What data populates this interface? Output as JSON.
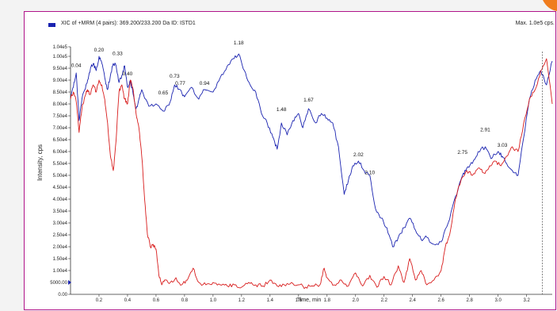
{
  "legend": {
    "label": "XIC of +MRM (4 pairs): 369.200/233.200 Da ID: ISTD1",
    "max": "Max. 1.0e5 cps."
  },
  "colors": {
    "series1": "#1a23b0",
    "series2": "#d81c1c",
    "frame": "#b0148a",
    "accent": "#f07d1e"
  },
  "chart_data": {
    "type": "line",
    "xlabel": "Time, min",
    "ylabel": "Intensity, cps",
    "xlim": [
      0.0,
      3.38
    ],
    "ylim": [
      0,
      104000
    ],
    "x_ticks": [
      0.2,
      0.4,
      0.6,
      0.8,
      1.0,
      1.2,
      1.4,
      1.6,
      1.8,
      2.0,
      2.2,
      2.4,
      2.6,
      2.8,
      3.0,
      3.2
    ],
    "x_tick_labels": [
      "0.2",
      "0.4",
      "0.6",
      "0.8",
      "1.0",
      "1.2",
      "1.4",
      "1.6",
      "1.8",
      "2.0",
      "2.2",
      "2.4",
      "2.6",
      "2.8",
      "3.0",
      "3.2"
    ],
    "y_ticks": [
      0,
      5000,
      10000,
      15000,
      20000,
      25000,
      30000,
      35000,
      40000,
      45000,
      50000,
      55000,
      60000,
      65000,
      70000,
      75000,
      80000,
      85000,
      90000,
      95000,
      100000,
      104000
    ],
    "y_tick_labels": [
      "0.00",
      "5000.00",
      "1.00e4",
      "1.50e4",
      "2.00e4",
      "2.50e4",
      "3.00e4",
      "3.50e4",
      "4.00e4",
      "4.50e4",
      "5.00e4",
      "5.50e4",
      "6.00e4",
      "6.50e4",
      "7.00e4",
      "7.50e4",
      "8.00e4",
      "8.50e4",
      "9.00e4",
      "9.50e4",
      "1.00e5",
      "1.04e5"
    ],
    "series": [
      {
        "x": [
          0.0,
          0.02,
          0.04,
          0.06,
          0.08,
          0.1,
          0.12,
          0.14,
          0.16,
          0.18,
          0.2,
          0.22,
          0.24,
          0.26,
          0.28,
          0.3,
          0.32,
          0.34,
          0.36,
          0.38,
          0.4,
          0.42,
          0.44,
          0.46,
          0.48,
          0.5,
          0.55,
          0.6,
          0.65,
          0.7,
          0.73,
          0.77,
          0.8,
          0.85,
          0.9,
          0.94,
          1.0,
          1.05,
          1.1,
          1.14,
          1.18,
          1.22,
          1.26,
          1.3,
          1.34,
          1.38,
          1.42,
          1.45,
          1.48,
          1.52,
          1.56,
          1.6,
          1.63,
          1.67,
          1.72,
          1.76,
          1.8,
          1.84,
          1.88,
          1.92,
          1.95,
          1.98,
          2.02,
          2.06,
          2.1,
          2.14,
          2.18,
          2.22,
          2.26,
          2.3,
          2.34,
          2.38,
          2.42,
          2.46,
          2.5,
          2.55,
          2.6,
          2.65,
          2.7,
          2.75,
          2.78,
          2.82,
          2.86,
          2.91,
          2.95,
          3.0,
          3.03,
          3.06,
          3.1,
          3.14,
          3.18,
          3.22,
          3.26,
          3.3,
          3.34,
          3.38
        ],
        "values": [
          83000,
          87000,
          93000,
          73000,
          82000,
          86000,
          90000,
          95000,
          97000,
          94000,
          100000,
          97000,
          91000,
          86000,
          92000,
          97000,
          96000,
          89000,
          92000,
          96000,
          87000,
          90000,
          84000,
          78000,
          82000,
          86000,
          79000,
          80000,
          77000,
          81000,
          88000,
          86000,
          83000,
          87000,
          82000,
          86000,
          85000,
          91000,
          96000,
          99000,
          101000,
          94000,
          88000,
          85000,
          76000,
          72000,
          66000,
          61000,
          72000,
          67000,
          73000,
          76000,
          70000,
          78000,
          72000,
          76000,
          74000,
          72000,
          62000,
          42000,
          48000,
          54000,
          56000,
          52000,
          50000,
          36000,
          32000,
          28000,
          20000,
          24000,
          28000,
          32000,
          27000,
          23000,
          24000,
          21000,
          22000,
          30000,
          41000,
          50000,
          53000,
          55000,
          60000,
          62000,
          57000,
          60000,
          58000,
          55000,
          52000,
          50000,
          66000,
          82000,
          90000,
          94000,
          88000,
          98000
        ]
      },
      {
        "x": [
          0.0,
          0.02,
          0.04,
          0.06,
          0.08,
          0.1,
          0.12,
          0.14,
          0.16,
          0.18,
          0.2,
          0.22,
          0.24,
          0.26,
          0.28,
          0.3,
          0.32,
          0.34,
          0.36,
          0.38,
          0.4,
          0.42,
          0.44,
          0.46,
          0.48,
          0.5,
          0.52,
          0.54,
          0.56,
          0.58,
          0.6,
          0.62,
          0.64,
          0.66,
          0.7,
          0.74,
          0.78,
          0.82,
          0.86,
          0.9,
          0.95,
          1.0,
          1.05,
          1.1,
          1.15,
          1.2,
          1.25,
          1.3,
          1.35,
          1.4,
          1.45,
          1.5,
          1.55,
          1.6,
          1.65,
          1.7,
          1.75,
          1.78,
          1.8,
          1.85,
          1.9,
          1.95,
          2.0,
          2.05,
          2.1,
          2.15,
          2.2,
          2.25,
          2.3,
          2.34,
          2.38,
          2.42,
          2.46,
          2.5,
          2.55,
          2.6,
          2.63,
          2.66,
          2.7,
          2.74,
          2.78,
          2.82,
          2.86,
          2.9,
          2.94,
          2.98,
          3.02,
          3.06,
          3.1,
          3.14,
          3.18,
          3.22,
          3.26,
          3.3,
          3.34,
          3.38
        ],
        "values": [
          82000,
          85000,
          81000,
          68000,
          78000,
          83000,
          86000,
          84000,
          88000,
          85000,
          90000,
          88000,
          82000,
          72000,
          58000,
          52000,
          65000,
          85000,
          88000,
          82000,
          80000,
          90000,
          86000,
          76000,
          70000,
          58000,
          40000,
          25000,
          20000,
          21000,
          19000,
          8000,
          4000,
          6000,
          5000,
          7000,
          4000,
          6000,
          11000,
          5000,
          4000,
          5000,
          4000,
          3500,
          4000,
          3000,
          5000,
          4000,
          3500,
          6000,
          3500,
          4000,
          5000,
          4000,
          3000,
          3500,
          4000,
          11000,
          7000,
          4000,
          6000,
          3500,
          9000,
          3500,
          8000,
          3000,
          7500,
          4000,
          12000,
          5000,
          15000,
          6000,
          10000,
          4000,
          6000,
          10000,
          20000,
          25000,
          40000,
          48000,
          52000,
          50000,
          53000,
          51000,
          54000,
          56000,
          54000,
          58000,
          62000,
          60000,
          72000,
          82000,
          86000,
          94000,
          99000,
          80000
        ]
      }
    ],
    "annotations": [
      {
        "text": "0.04",
        "x": 0.04,
        "y": 95500
      },
      {
        "text": "0.20",
        "x": 0.2,
        "y": 102000
      },
      {
        "text": "0.33",
        "x": 0.33,
        "y": 100500
      },
      {
        "text": "0.40",
        "x": 0.4,
        "y": 92000
      },
      {
        "text": "0.65",
        "x": 0.65,
        "y": 84000
      },
      {
        "text": "0.73",
        "x": 0.73,
        "y": 91000
      },
      {
        "text": "0.77",
        "x": 0.77,
        "y": 88000
      },
      {
        "text": "0.94",
        "x": 0.94,
        "y": 88000
      },
      {
        "text": "1.18",
        "x": 1.18,
        "y": 105000
      },
      {
        "text": "1.48",
        "x": 1.48,
        "y": 77000
      },
      {
        "text": "1.67",
        "x": 1.67,
        "y": 81000
      },
      {
        "text": "2.02",
        "x": 2.02,
        "y": 58000
      },
      {
        "text": "2.10",
        "x": 2.1,
        "y": 50500
      },
      {
        "text": "2.75",
        "x": 2.75,
        "y": 59000
      },
      {
        "text": "2.91",
        "x": 2.91,
        "y": 68500
      },
      {
        "text": "3.03",
        "x": 3.03,
        "y": 62000
      }
    ],
    "marker_x": 3.31
  }
}
